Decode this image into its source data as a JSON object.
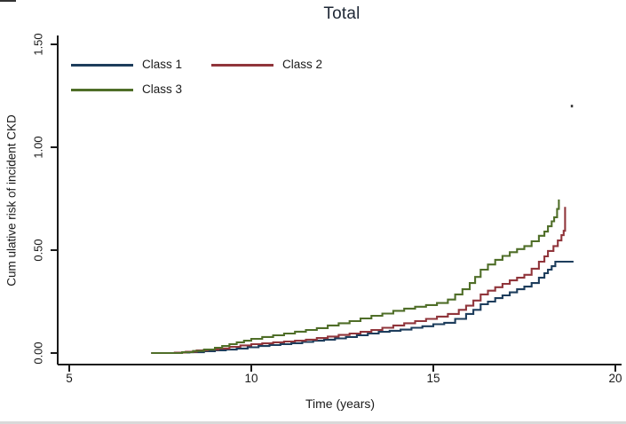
{
  "figure": {
    "title_color": "#1e2735",
    "axis_color": "#1a1a1a",
    "text_color": "#1a1a1a",
    "background_color": "#ffffff"
  },
  "legend": {
    "position": "top-left-inside",
    "items": [
      {
        "label": "Class 1",
        "color": "#1d3d5c"
      },
      {
        "label": "Class 2",
        "color": "#90353b"
      },
      {
        "label": "Class 3",
        "color": "#4f6e28"
      }
    ]
  },
  "chart_data": {
    "type": "line",
    "step": true,
    "title": "Total",
    "xlabel": "Time (years)",
    "ylabel": "Cum ulative risk of incident CKD",
    "xlim": [
      5,
      20
    ],
    "ylim": [
      0,
      1.5
    ],
    "grid": "off",
    "legend_position": "top-left-inside",
    "x_tick_values": [
      5,
      10,
      15,
      20
    ],
    "x_tick_labels": [
      "5",
      "10",
      "15",
      "20"
    ],
    "y_tick_values": [
      0,
      0.5,
      1.0,
      1.5
    ],
    "y_tick_labels": [
      "0.00",
      "0.50",
      "1.00",
      "1.50"
    ],
    "series": [
      {
        "name": "Class 1",
        "color": "#1d3d5c",
        "points": [
          [
            7.25,
            0
          ],
          [
            7.9,
            0.002
          ],
          [
            8.3,
            0.004
          ],
          [
            8.7,
            0.009
          ],
          [
            9.0,
            0.013
          ],
          [
            9.3,
            0.017
          ],
          [
            9.6,
            0.022
          ],
          [
            9.9,
            0.028
          ],
          [
            10.2,
            0.034
          ],
          [
            10.5,
            0.039
          ],
          [
            10.8,
            0.043
          ],
          [
            11.1,
            0.048
          ],
          [
            11.4,
            0.054
          ],
          [
            11.7,
            0.06
          ],
          [
            12.0,
            0.065
          ],
          [
            12.3,
            0.071
          ],
          [
            12.6,
            0.078
          ],
          [
            12.9,
            0.086
          ],
          [
            13.2,
            0.095
          ],
          [
            13.5,
            0.103
          ],
          [
            13.8,
            0.108
          ],
          [
            14.1,
            0.114
          ],
          [
            14.4,
            0.123
          ],
          [
            14.7,
            0.13
          ],
          [
            15.0,
            0.14
          ],
          [
            15.3,
            0.147
          ],
          [
            15.6,
            0.166
          ],
          [
            15.9,
            0.19
          ],
          [
            16.1,
            0.21
          ],
          [
            16.3,
            0.237
          ],
          [
            16.5,
            0.25
          ],
          [
            16.7,
            0.267
          ],
          [
            16.9,
            0.28
          ],
          [
            17.1,
            0.295
          ],
          [
            17.3,
            0.31
          ],
          [
            17.5,
            0.323
          ],
          [
            17.7,
            0.34
          ],
          [
            17.9,
            0.366
          ],
          [
            18.05,
            0.388
          ],
          [
            18.15,
            0.405
          ],
          [
            18.25,
            0.422
          ],
          [
            18.35,
            0.444
          ],
          [
            18.85,
            0.444
          ]
        ]
      },
      {
        "name": "Class 2",
        "color": "#90353b",
        "points": [
          [
            7.25,
            0
          ],
          [
            7.9,
            0.002
          ],
          [
            8.2,
            0.006
          ],
          [
            8.5,
            0.013
          ],
          [
            8.8,
            0.017
          ],
          [
            9.1,
            0.022
          ],
          [
            9.4,
            0.03
          ],
          [
            9.7,
            0.037
          ],
          [
            10.0,
            0.043
          ],
          [
            10.3,
            0.047
          ],
          [
            10.6,
            0.052
          ],
          [
            10.9,
            0.056
          ],
          [
            11.2,
            0.06
          ],
          [
            11.5,
            0.065
          ],
          [
            11.8,
            0.073
          ],
          [
            12.1,
            0.08
          ],
          [
            12.4,
            0.088
          ],
          [
            12.7,
            0.095
          ],
          [
            13.0,
            0.103
          ],
          [
            13.3,
            0.112
          ],
          [
            13.6,
            0.123
          ],
          [
            13.9,
            0.134
          ],
          [
            14.2,
            0.145
          ],
          [
            14.5,
            0.155
          ],
          [
            14.8,
            0.166
          ],
          [
            15.1,
            0.177
          ],
          [
            15.4,
            0.19
          ],
          [
            15.7,
            0.21
          ],
          [
            15.9,
            0.23
          ],
          [
            16.1,
            0.255
          ],
          [
            16.3,
            0.285
          ],
          [
            16.5,
            0.303
          ],
          [
            16.7,
            0.32
          ],
          [
            16.9,
            0.336
          ],
          [
            17.1,
            0.353
          ],
          [
            17.3,
            0.366
          ],
          [
            17.5,
            0.38
          ],
          [
            17.7,
            0.41
          ],
          [
            17.9,
            0.444
          ],
          [
            18.05,
            0.47
          ],
          [
            18.15,
            0.496
          ],
          [
            18.3,
            0.52
          ],
          [
            18.42,
            0.547
          ],
          [
            18.52,
            0.573
          ],
          [
            18.58,
            0.594
          ],
          [
            18.62,
            0.71
          ]
        ]
      },
      {
        "name": "Class 3",
        "color": "#4f6e28",
        "points": [
          [
            7.25,
            0
          ],
          [
            8.1,
            0.004
          ],
          [
            8.4,
            0.01
          ],
          [
            8.7,
            0.017
          ],
          [
            9.0,
            0.026
          ],
          [
            9.2,
            0.034
          ],
          [
            9.4,
            0.043
          ],
          [
            9.6,
            0.052
          ],
          [
            9.8,
            0.06
          ],
          [
            10.0,
            0.069
          ],
          [
            10.3,
            0.078
          ],
          [
            10.6,
            0.086
          ],
          [
            10.9,
            0.095
          ],
          [
            11.2,
            0.104
          ],
          [
            11.5,
            0.112
          ],
          [
            11.8,
            0.121
          ],
          [
            12.1,
            0.134
          ],
          [
            12.4,
            0.145
          ],
          [
            12.7,
            0.155
          ],
          [
            13.0,
            0.168
          ],
          [
            13.3,
            0.181
          ],
          [
            13.6,
            0.192
          ],
          [
            13.9,
            0.205
          ],
          [
            14.2,
            0.216
          ],
          [
            14.5,
            0.225
          ],
          [
            14.8,
            0.233
          ],
          [
            15.1,
            0.243
          ],
          [
            15.4,
            0.26
          ],
          [
            15.6,
            0.285
          ],
          [
            15.8,
            0.31
          ],
          [
            16.0,
            0.34
          ],
          [
            16.15,
            0.37
          ],
          [
            16.3,
            0.405
          ],
          [
            16.5,
            0.43
          ],
          [
            16.7,
            0.453
          ],
          [
            16.9,
            0.472
          ],
          [
            17.1,
            0.49
          ],
          [
            17.3,
            0.505
          ],
          [
            17.5,
            0.52
          ],
          [
            17.7,
            0.543
          ],
          [
            17.9,
            0.57
          ],
          [
            18.05,
            0.59
          ],
          [
            18.15,
            0.616
          ],
          [
            18.25,
            0.64
          ],
          [
            18.32,
            0.66
          ],
          [
            18.4,
            0.7
          ],
          [
            18.45,
            0.746
          ]
        ]
      }
    ],
    "annotation_marks": [
      {
        "x": 18.8,
        "y": 1.2,
        "note": "small stray dot mark upper right"
      }
    ]
  }
}
